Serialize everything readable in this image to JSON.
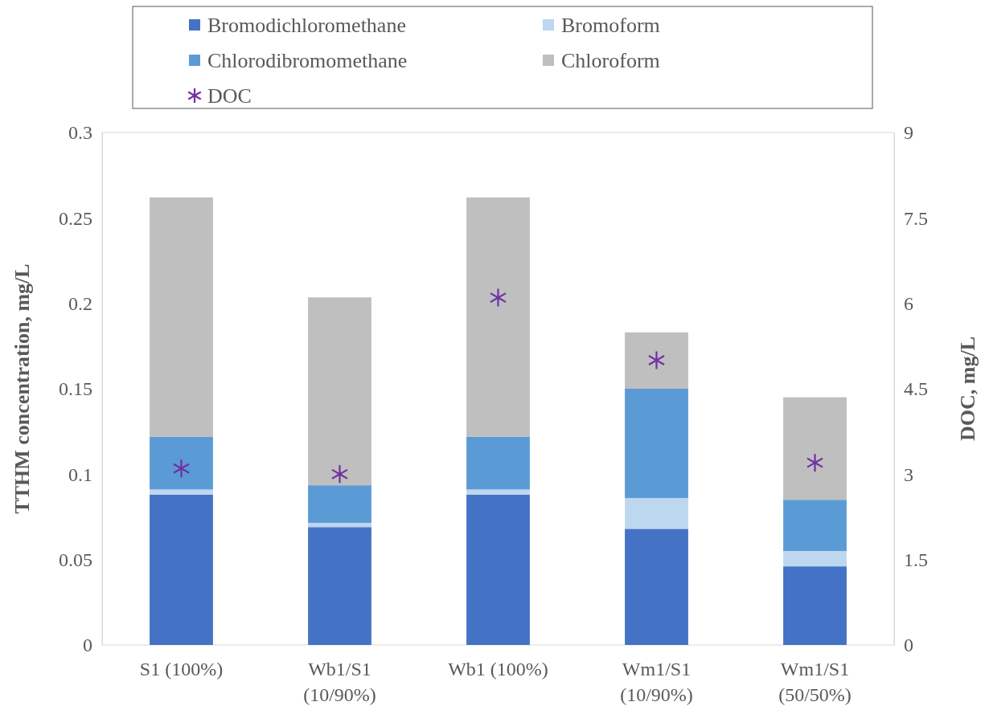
{
  "chart_data": {
    "type": "bar",
    "stacked": true,
    "ylabel": "TTHM concentration, mg/L",
    "y2label": "DOC, mg/L",
    "categories": [
      "S1 (100%)",
      "Wb1/S1 (10/90%)",
      "Wb1 (100%)",
      "Wm1/S1 (10/90%)",
      "Wm1/S1 (50/50%)"
    ],
    "series": [
      {
        "name": "Bromodichloromethane",
        "color": "#4472c4",
        "values": [
          0.088,
          0.069,
          0.088,
          0.068,
          0.046
        ]
      },
      {
        "name": "Bromoform",
        "color": "#bdd7ee",
        "values": [
          0.003,
          0.0025,
          0.003,
          0.018,
          0.009
        ]
      },
      {
        "name": "Chlorodibromomethane",
        "color": "#5b9bd5",
        "values": [
          0.031,
          0.022,
          0.031,
          0.064,
          0.03
        ]
      },
      {
        "name": "Chloroform",
        "color": "#bfbfbf",
        "values": [
          0.14,
          0.11,
          0.14,
          0.033,
          0.06
        ]
      },
      {
        "name": "DOC",
        "type": "scatter",
        "axis": "y2",
        "marker": "star",
        "color": "#7030a0",
        "values": [
          3.1,
          3.0,
          6.1,
          5.0,
          3.2
        ]
      }
    ],
    "ylim": [
      0,
      0.3
    ],
    "yticks": [
      0,
      0.05,
      0.1,
      0.15,
      0.2,
      0.25,
      0.3
    ],
    "y2lim": [
      0,
      9
    ],
    "y2ticks": [
      0,
      1.5,
      3,
      4.5,
      6,
      7.5,
      9
    ],
    "grid": false,
    "legend": "top"
  }
}
